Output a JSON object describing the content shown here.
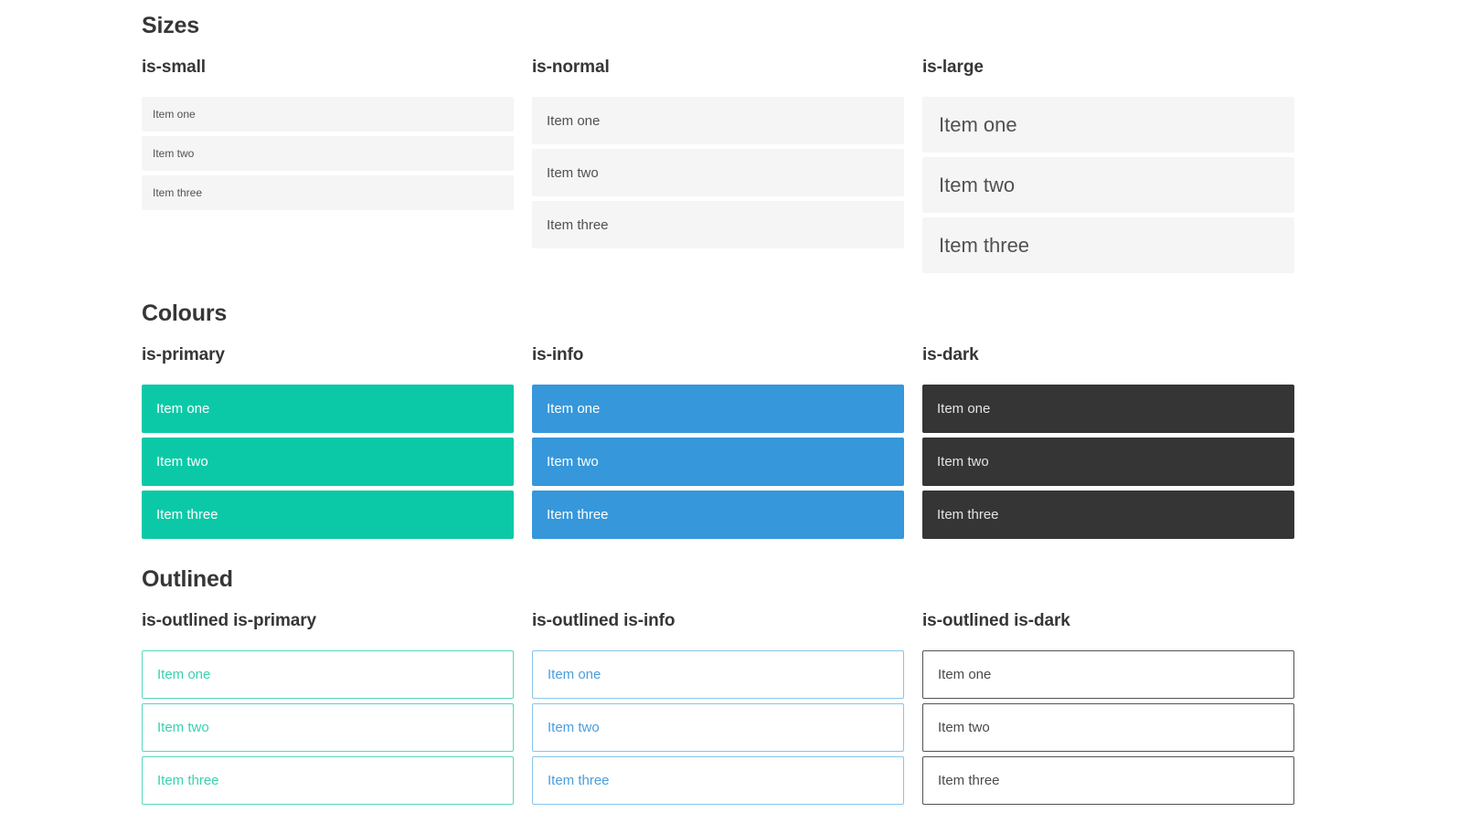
{
  "theme": {
    "heading": "#363636",
    "item-bg": "#f5f5f5",
    "item-text": "#515151",
    "primary": "#0bc9a7",
    "info": "#3697db",
    "dark": "#353535",
    "on-color": "#ffffff",
    "on-dark": "#e4e4e4",
    "outline-primary-border": "#55d8bc",
    "outline-primary-text": "#39d1af",
    "outline-info-border": "#89c4ea",
    "outline-info-text": "#4a9edb",
    "outline-dark-border": "#525252",
    "outline-dark-text": "#4a4a4a"
  },
  "sections": [
    {
      "title": "Sizes",
      "groups": [
        {
          "label": "is-small",
          "items": [
            "Item one",
            "Item two",
            "Item three"
          ]
        },
        {
          "label": "is-normal",
          "items": [
            "Item one",
            "Item two",
            "Item three"
          ]
        },
        {
          "label": "is-large",
          "items": [
            "Item one",
            "Item two",
            "Item three"
          ]
        }
      ]
    },
    {
      "title": "Colours",
      "groups": [
        {
          "label": "is-primary",
          "items": [
            "Item one",
            "Item two",
            "Item three"
          ]
        },
        {
          "label": "is-info",
          "items": [
            "Item one",
            "Item two",
            "Item three"
          ]
        },
        {
          "label": "is-dark",
          "items": [
            "Item one",
            "Item two",
            "Item three"
          ]
        }
      ]
    },
    {
      "title": "Outlined",
      "groups": [
        {
          "label": "is-outlined is-primary",
          "items": [
            "Item one",
            "Item two",
            "Item three"
          ]
        },
        {
          "label": "is-outlined is-info",
          "items": [
            "Item one",
            "Item two",
            "Item three"
          ]
        },
        {
          "label": "is-outlined is-dark",
          "items": [
            "Item one",
            "Item two",
            "Item three"
          ]
        }
      ]
    }
  ]
}
